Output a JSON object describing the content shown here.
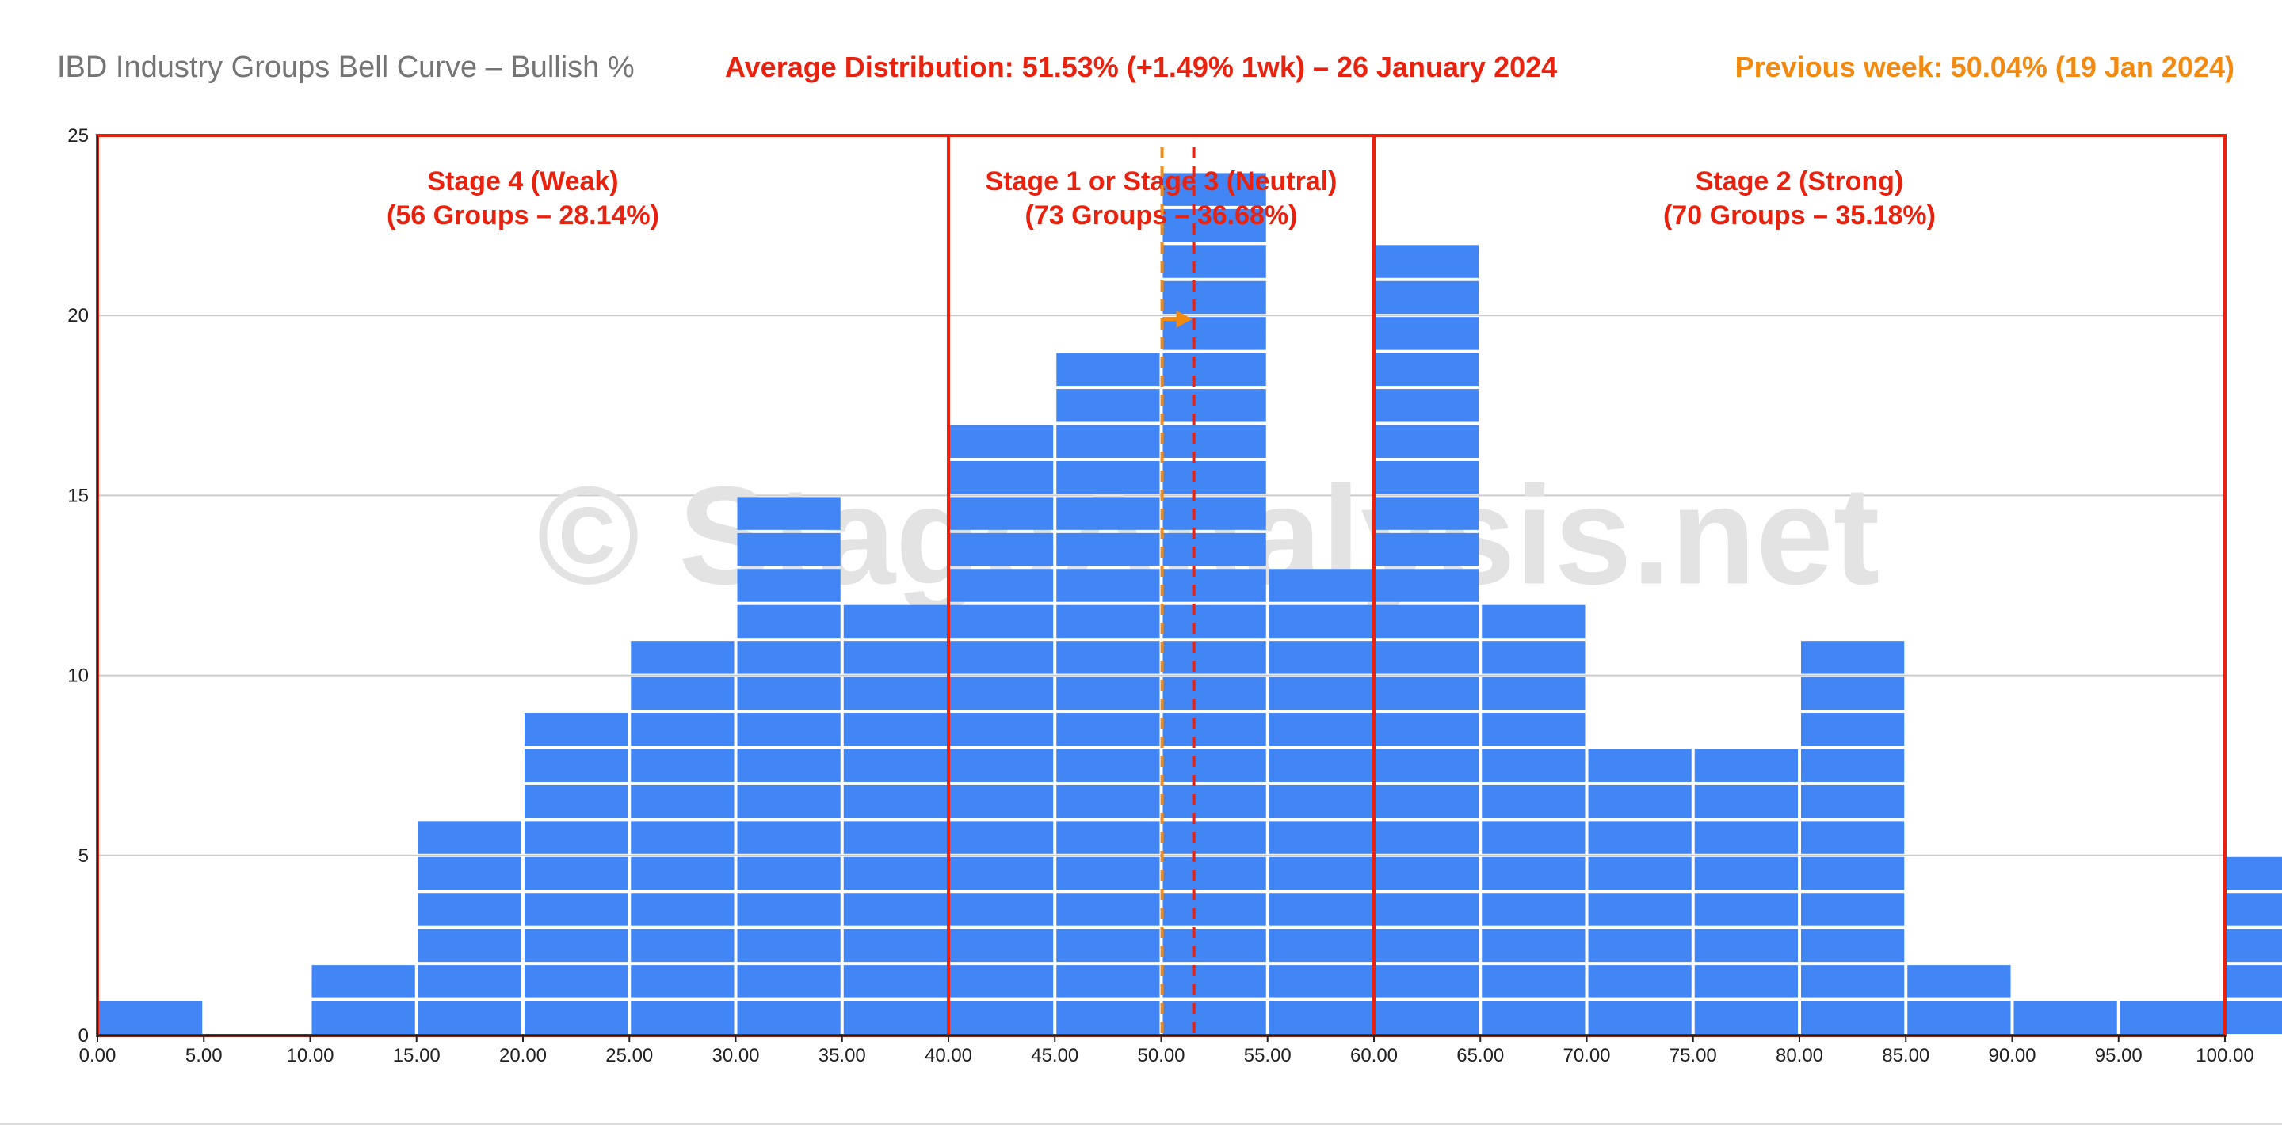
{
  "chart_data": {
    "type": "bar",
    "title": "IBD Industry Groups Bell Curve – Bullish %",
    "subtitle": "Average Distribution: 51.53% (+1.49% 1wk) – 26 January 2024",
    "previous_week_note": "Previous week: 50.04% (19 Jan 2024)",
    "watermark": "© StageAnalysis.net",
    "bin_edges": [
      0,
      5,
      10,
      15,
      20,
      25,
      30,
      35,
      40,
      45,
      50,
      55,
      60,
      65,
      70,
      75,
      80,
      85,
      90,
      95,
      100
    ],
    "counts": [
      1,
      0,
      2,
      6,
      9,
      11,
      15,
      12,
      17,
      19,
      24,
      13,
      22,
      12,
      8,
      8,
      11,
      2,
      1,
      1,
      5
    ],
    "x_tick_labels": [
      "0.00",
      "5.00",
      "10.00",
      "15.00",
      "20.00",
      "25.00",
      "30.00",
      "35.00",
      "40.00",
      "45.00",
      "50.00",
      "55.00",
      "60.00",
      "65.00",
      "70.00",
      "75.00",
      "80.00",
      "85.00",
      "90.00",
      "95.00",
      "100.00"
    ],
    "y_tick_values": [
      0,
      5,
      10,
      15,
      20,
      25
    ],
    "xlim": [
      0,
      100
    ],
    "ylim": [
      0,
      25
    ],
    "grid": true,
    "bar_color": "#4285f4",
    "current_average": 51.53,
    "previous_average": 50.04,
    "current_average_color": "#e8220f",
    "previous_average_color": "#f28a12",
    "zone_color": "#e8220f",
    "zones": [
      {
        "name": "Stage 4 (Weak)",
        "groups": "(56 Groups – 28.14%)",
        "from": 0,
        "to": 40
      },
      {
        "name": "Stage 1 or Stage 3 (Neutral)",
        "groups": "(73 Groups – 36.68%)",
        "from": 40,
        "to": 60
      },
      {
        "name": "Stage 2 (Strong)",
        "groups": "(70 Groups – 35.18%)",
        "from": 60,
        "to": 100
      }
    ]
  }
}
